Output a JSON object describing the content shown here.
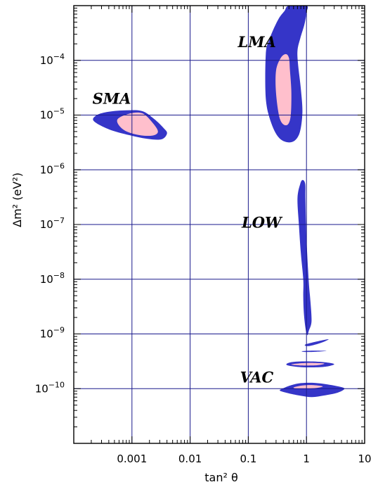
{
  "chart_data": {
    "type": "contour",
    "xlabel": "tan² θ",
    "ylabel": "Δm² (eV²)",
    "x_scale": "log",
    "y_scale": "log",
    "xlim": [
      0.0001,
      10
    ],
    "ylim": [
      1e-11,
      0.001
    ],
    "grid": true,
    "x_ticks": [
      {
        "value": 0.001,
        "label": "0.001"
      },
      {
        "value": 0.01,
        "label": "0.01"
      },
      {
        "value": 0.1,
        "label": "0.1"
      },
      {
        "value": 1,
        "label": "1"
      },
      {
        "value": 10,
        "label": "10"
      }
    ],
    "y_ticks": [
      {
        "value": 1e-10,
        "base": "10",
        "exp": "−10"
      },
      {
        "value": 1e-09,
        "base": "10",
        "exp": "−9"
      },
      {
        "value": 1e-08,
        "base": "10",
        "exp": "−8"
      },
      {
        "value": 1e-07,
        "base": "10",
        "exp": "−7"
      },
      {
        "value": 1e-06,
        "base": "10",
        "exp": "−6"
      },
      {
        "value": 1e-05,
        "base": "10",
        "exp": "−5"
      },
      {
        "value": 0.0001,
        "base": "10",
        "exp": "−4"
      }
    ],
    "colors": {
      "outer": "#3535c8",
      "inner": "#ffbfcc",
      "grid": "#1a1a8c"
    },
    "regions": [
      {
        "label": "SMA",
        "label_at": [
          0.00021,
          1.6e-05
        ],
        "outer": [
          [
            0.00025,
            1e-05
          ],
          [
            0.0004,
            1.15e-05
          ],
          [
            0.0008,
            1.22e-05
          ],
          [
            0.0015,
            1.18e-05
          ],
          [
            0.0024,
            8.5e-06
          ],
          [
            0.0035,
            5.8e-06
          ],
          [
            0.004,
            4.6e-06
          ],
          [
            0.0032,
            3.6e-06
          ],
          [
            0.0018,
            3.7e-06
          ],
          [
            0.0009,
            4.3e-06
          ],
          [
            0.0004,
            5.5e-06
          ],
          [
            0.00022,
            7.8e-06
          ]
        ],
        "inner": [
          [
            0.00056,
            8.2e-06
          ],
          [
            0.0009,
            1.06e-05
          ],
          [
            0.0015,
            1.08e-05
          ],
          [
            0.0022,
            7.5e-06
          ],
          [
            0.0028,
            5e-06
          ],
          [
            0.0022,
            4.2e-06
          ],
          [
            0.0012,
            4.4e-06
          ],
          [
            0.0007,
            5.5e-06
          ]
        ]
      },
      {
        "label": "LMA",
        "label_at": [
          0.066,
          0.000175
        ],
        "outer": [
          [
            0.2,
            2e-05
          ],
          [
            0.2,
            0.00013
          ],
          [
            0.23,
            0.00024
          ],
          [
            0.28,
            0.0004
          ],
          [
            0.34,
            0.0006
          ],
          [
            0.42,
            0.0008
          ],
          [
            0.5,
            0.001
          ],
          [
            1.0,
            0.001
          ],
          [
            1.0,
            0.00075
          ],
          [
            0.92,
            0.00045
          ],
          [
            0.78,
            0.00025
          ],
          [
            0.7,
            0.00015
          ],
          [
            0.72,
            8e-05
          ],
          [
            0.8,
            3e-05
          ],
          [
            0.85,
            1.1e-05
          ],
          [
            0.75,
            4.5e-06
          ],
          [
            0.55,
            3.2e-06
          ],
          [
            0.35,
            3.7e-06
          ],
          [
            0.25,
            7e-06
          ]
        ],
        "inner": [
          [
            0.3,
            2.5e-05
          ],
          [
            0.3,
            6.5e-05
          ],
          [
            0.36,
            0.00011
          ],
          [
            0.44,
            0.00013
          ],
          [
            0.5,
            0.00011
          ],
          [
            0.52,
            6.5e-05
          ],
          [
            0.55,
            2.5e-05
          ],
          [
            0.53,
            9e-06
          ],
          [
            0.45,
            6.5e-06
          ],
          [
            0.35,
            8.5e-06
          ]
        ]
      },
      {
        "label": "LOW",
        "label_at": [
          0.077,
          8.8e-08
        ],
        "outer": [
          [
            0.7,
            3e-07
          ],
          [
            0.78,
            5.5e-07
          ],
          [
            0.86,
            6.5e-07
          ],
          [
            0.95,
            5.5e-07
          ],
          [
            0.96,
            3e-07
          ],
          [
            0.98,
            1e-07
          ],
          [
            1.02,
            3.5e-08
          ],
          [
            1.1,
            8.5e-09
          ],
          [
            1.17,
            4e-09
          ],
          [
            1.22,
            1.7e-09
          ],
          [
            1.1,
            1.15e-09
          ],
          [
            1.03,
            9.5e-10
          ],
          [
            0.96,
            1.3e-09
          ],
          [
            0.9,
            2.5e-09
          ],
          [
            0.88,
            5e-09
          ],
          [
            0.88,
            1e-08
          ],
          [
            0.8,
            3e-08
          ],
          [
            0.74,
            1e-07
          ]
        ]
      },
      {
        "label": "VAC",
        "label_at": [
          0.072,
          1.3e-10
        ],
        "outer": [
          [
            0.4,
            1.02e-10
          ],
          [
            0.55,
            1.16e-10
          ],
          [
            0.8,
            1.26e-10
          ],
          [
            1.25,
            1.28e-10
          ],
          [
            2.0,
            1.22e-10
          ],
          [
            3.5,
            1.1e-10
          ],
          [
            4.5,
            1e-10
          ],
          [
            3.5,
            8.5e-11
          ],
          [
            2.0,
            7.5e-11
          ],
          [
            1.25,
            7e-11
          ],
          [
            0.8,
            7.4e-11
          ],
          [
            0.5,
            8.2e-11
          ],
          [
            0.35,
            9.2e-11
          ]
        ],
        "inner": [
          [
            0.6,
            1.05e-10
          ],
          [
            0.85,
            1.14e-10
          ],
          [
            1.3,
            1.16e-10
          ],
          [
            1.9,
            1.1e-10
          ],
          [
            1.5,
            1.03e-10
          ],
          [
            1.0,
            1e-10
          ],
          [
            0.7,
            1e-10
          ]
        ]
      },
      {
        "label": "",
        "outer": [
          [
            0.45,
            2.75e-10
          ],
          [
            0.55,
            3.05e-10
          ],
          [
            1.0,
            3.15e-10
          ],
          [
            2.0,
            3.05e-10
          ],
          [
            3.0,
            2.8e-10
          ],
          [
            2.0,
            2.5e-10
          ],
          [
            1.0,
            2.45e-10
          ],
          [
            0.6,
            2.55e-10
          ]
        ],
        "inner": [
          [
            0.55,
            2.78e-10
          ],
          [
            1.0,
            2.95e-10
          ],
          [
            2.0,
            2.88e-10
          ],
          [
            1.5,
            2.68e-10
          ],
          [
            0.8,
            2.66e-10
          ]
        ]
      },
      {
        "label": "",
        "outer": [
          [
            0.85,
            4.85e-10
          ],
          [
            1.3,
            4.95e-10
          ],
          [
            2.2,
            4.9e-10
          ],
          [
            1.3,
            4.7e-10
          ],
          [
            0.9,
            4.7e-10
          ]
        ]
      },
      {
        "label": "",
        "outer": [
          [
            0.95,
            6.4e-10
          ],
          [
            1.6,
            7.4e-10
          ],
          [
            2.4,
            8e-10
          ],
          [
            1.8,
            6.9e-10
          ],
          [
            1.1,
            6e-10
          ]
        ]
      }
    ]
  }
}
